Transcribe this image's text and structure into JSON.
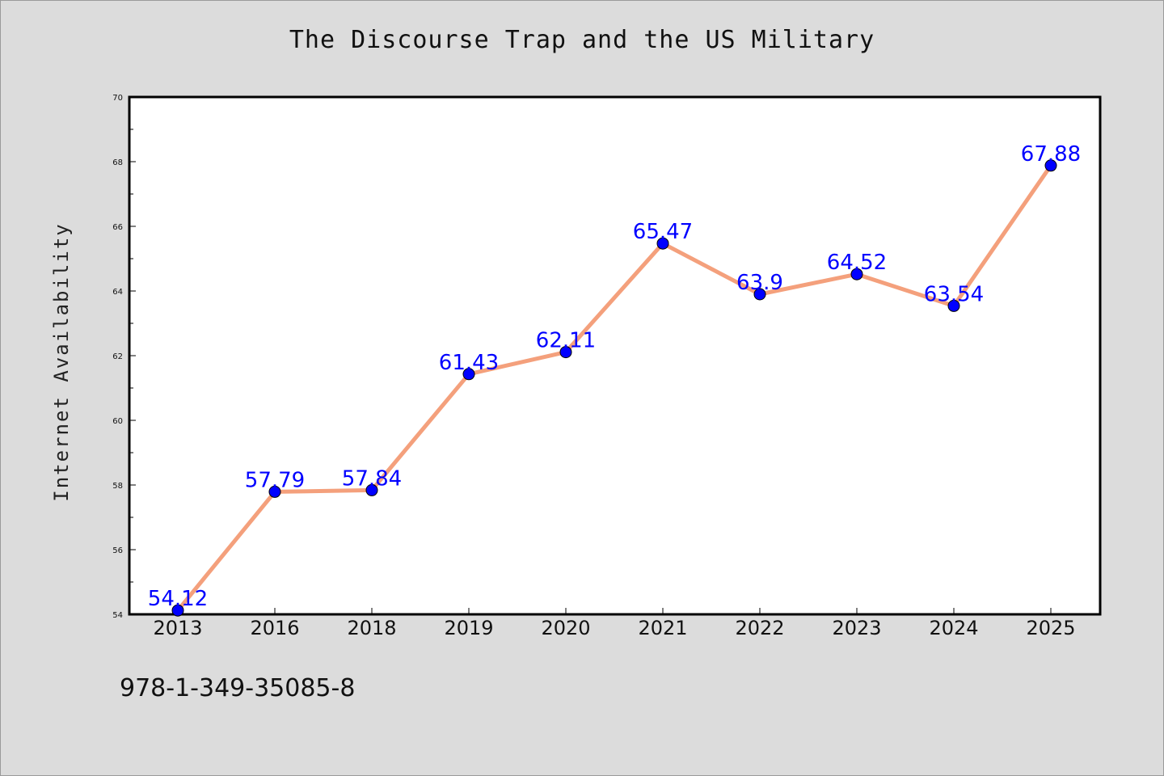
{
  "isbn": "978-1-349-35085-8",
  "chart_data": {
    "type": "line",
    "title": "The Discourse Trap and the US Military",
    "xlabel": "",
    "ylabel": "Internet Availability",
    "categories": [
      "2013",
      "2016",
      "2018",
      "2019",
      "2020",
      "2021",
      "2022",
      "2023",
      "2024",
      "2025"
    ],
    "series": [
      {
        "values": [
          54.12,
          57.79,
          57.84,
          61.43,
          62.11,
          65.47,
          63.9,
          64.52,
          63.54,
          67.88
        ],
        "labels": [
          "54.12",
          "57.79",
          "57.84",
          "61.43",
          "62.11",
          "65.47",
          "63.9",
          "64.52",
          "63.54",
          "67.88"
        ],
        "line_color": "#f4a07c",
        "marker_color": "#0000ff"
      }
    ],
    "ylim": [
      54,
      70
    ],
    "yticks": [
      54,
      56,
      58,
      60,
      62,
      64,
      66,
      68,
      70
    ],
    "grid": false,
    "legend": "none"
  }
}
